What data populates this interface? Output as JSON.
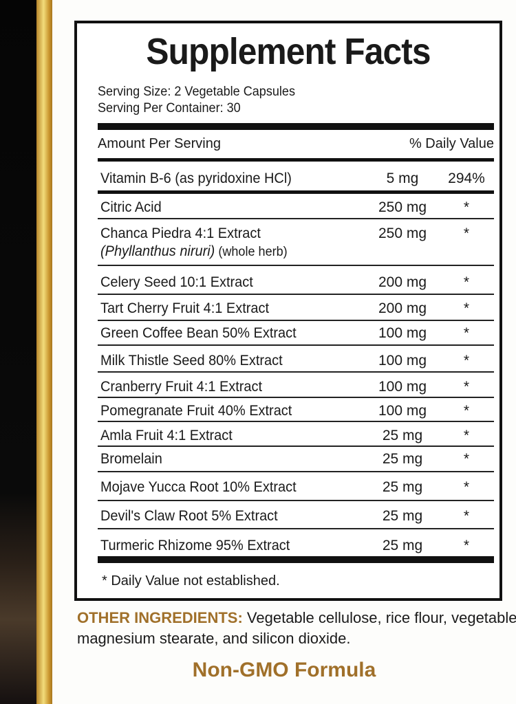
{
  "title": "Supplement Facts",
  "serving_size": "Serving Size: 2 Vegetable Capsules",
  "servings_per_container": "Serving Per Container: 30",
  "header": {
    "amount": "Amount Per Serving",
    "dv": "% Daily Value"
  },
  "ingredients": [
    {
      "name": "Vitamin B-6 (as pyridoxine HCl)",
      "amount": "5 mg",
      "dv": "294%"
    },
    {
      "name": "Citric Acid",
      "amount": "250 mg",
      "dv": "*"
    },
    {
      "name": "Chanca Piedra 4:1 Extract",
      "latin": "(Phyllanthus niruri)",
      "part": " (whole herb)",
      "amount": "250 mg",
      "dv": "*"
    },
    {
      "name": "Celery Seed 10:1 Extract",
      "amount": "200 mg",
      "dv": "*"
    },
    {
      "name": "Tart Cherry Fruit 4:1 Extract",
      "amount": "200 mg",
      "dv": "*"
    },
    {
      "name": "Green Coffee Bean 50% Extract",
      "amount": "100 mg",
      "dv": "*"
    },
    {
      "name": "Milk Thistle Seed 80% Extract",
      "amount": "100 mg",
      "dv": "*"
    },
    {
      "name": "Cranberry Fruit 4:1 Extract",
      "amount": "100 mg",
      "dv": "*"
    },
    {
      "name": "Pomegranate Fruit 40% Extract",
      "amount": "100 mg",
      "dv": "*"
    },
    {
      "name": "Amla Fruit 4:1 Extract",
      "amount": "25 mg",
      "dv": "*"
    },
    {
      "name": "Bromelain",
      "amount": "25 mg",
      "dv": "*"
    },
    {
      "name": "Mojave Yucca Root 10% Extract",
      "amount": "25 mg",
      "dv": "*"
    },
    {
      "name": "Devil's Claw Root 5% Extract",
      "amount": "25 mg",
      "dv": "*"
    },
    {
      "name": "Turmeric Rhizome 95% Extract",
      "amount": "25 mg",
      "dv": "*"
    }
  ],
  "footnote": "* Daily Value not established.",
  "other_ingredients": {
    "label": "OTHER INGREDIENTS:",
    "text": " Vegetable cellulose, rice flour, vegetable magnesium stearate, and silicon dioxide."
  },
  "badge": "Non-GMO Formula",
  "colors": {
    "accent": "#a0702a",
    "gold": "#d4a83f"
  }
}
